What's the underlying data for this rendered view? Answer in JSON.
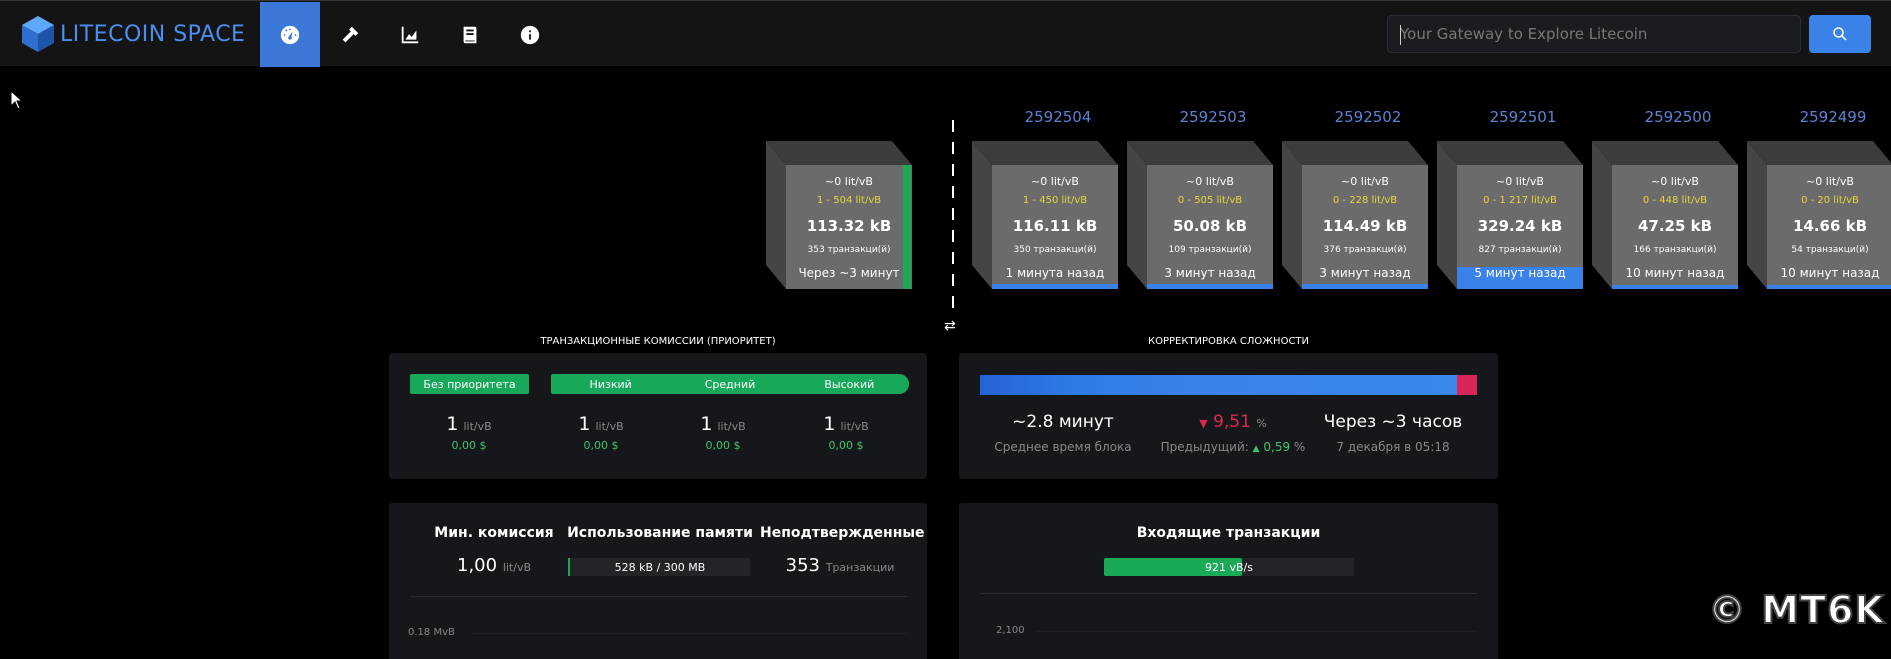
{
  "brand": {
    "name": "LITECOIN SPACE"
  },
  "nav": [
    {
      "icon": "dashboard-icon",
      "active": true
    },
    {
      "icon": "hammer-icon",
      "active": false
    },
    {
      "icon": "chart-icon",
      "active": false
    },
    {
      "icon": "docs-icon",
      "active": false
    },
    {
      "icon": "info-icon",
      "active": false
    }
  ],
  "search": {
    "placeholder": "Your Gateway to Explore Litecoin",
    "button_icon": "search-icon"
  },
  "mempool_block": {
    "fee": "~0 lit/vB",
    "range": "1 - 504 lit/vB",
    "size": "113.32 kB",
    "tx": "353 транзакци(й)",
    "time": "Через ~3 минут"
  },
  "blocks": [
    {
      "height": "2592504",
      "fee": "~0 lit/vB",
      "range": "1 - 450 lit/vB",
      "size": "116.11 kB",
      "tx": "350 транзакци(й)",
      "time": "1 минута назад",
      "fill": 0.04
    },
    {
      "height": "2592503",
      "fee": "~0 lit/vB",
      "range": "0 - 505 lit/vB",
      "size": "50.08 kB",
      "tx": "109 транзакци(й)",
      "time": "3 минут назад",
      "fill": 0.04
    },
    {
      "height": "2592502",
      "fee": "~0 lit/vB",
      "range": "0 - 228 lit/vB",
      "size": "114.49 kB",
      "tx": "376 транзакци(й)",
      "time": "3 минут назад",
      "fill": 0.04
    },
    {
      "height": "2592501",
      "fee": "~0 lit/vB",
      "range": "0 - 1 217 lit/vB",
      "size": "329.24 kB",
      "tx": "827 транзакци(й)",
      "time": "5 минут назад",
      "fill": 0.18
    },
    {
      "height": "2592500",
      "fee": "~0 lit/vB",
      "range": "0 - 448 lit/vB",
      "size": "47.25 kB",
      "tx": "166 транзакци(й)",
      "time": "10 минут назад",
      "fill": 0.03
    },
    {
      "height": "2592499",
      "fee": "~0 lit/vB",
      "range": "0 - 20 lit/vB",
      "size": "14.66 kB",
      "tx": "54 транзакци(й)",
      "time": "10 минут назад",
      "fill": 0.03
    }
  ],
  "fees": {
    "title": "ТРАНЗАКЦИОННЫЕ КОМИССИИ (ПРИОРИТЕТ)",
    "no_priority": "Без приоритета",
    "low": "Низкий",
    "medium": "Средний",
    "high": "Высокий",
    "values": [
      {
        "value": "1",
        "unit": "lit/vB",
        "usd": "0,00 $"
      },
      {
        "value": "1",
        "unit": "lit/vB",
        "usd": "0,00 $"
      },
      {
        "value": "1",
        "unit": "lit/vB",
        "usd": "0,00 $"
      },
      {
        "value": "1",
        "unit": "lit/vB",
        "usd": "0,00 $"
      }
    ]
  },
  "difficulty": {
    "title": "КОРРЕКТИРОВКА СЛОЖНОСТИ",
    "progress": 0.96,
    "block_time": "~2.8 минут",
    "block_time_label": "Среднее время блока",
    "change": "9,51",
    "change_unit": "%",
    "previous_label": "Предыдущий:",
    "previous": "0,59",
    "previous_unit": "%",
    "eta": "Через ~3 часов",
    "eta_date": "7 декабря в 05:18",
    "colors": {
      "bar": "#3b82e8",
      "end": "#d8265a",
      "down": "#e0284f",
      "up": "#3fc36b"
    }
  },
  "mempool_stats": {
    "min_fee_label": "Мин. комиссия",
    "min_fee": "1,00",
    "min_fee_unit": "lit/vB",
    "memory_label": "Использование памяти",
    "memory": "528 kB / 300 MB",
    "unconfirmed_label": "Неподтвержденные",
    "unconfirmed": "353",
    "unconfirmed_unit": "Транзакции",
    "axis_label": "0.18 MvB"
  },
  "incoming": {
    "title": "Входящие транзакции",
    "rate": "921 vB/s",
    "progress": 0.55,
    "axis_top": "2,100"
  },
  "watermark": "© MT6K"
}
